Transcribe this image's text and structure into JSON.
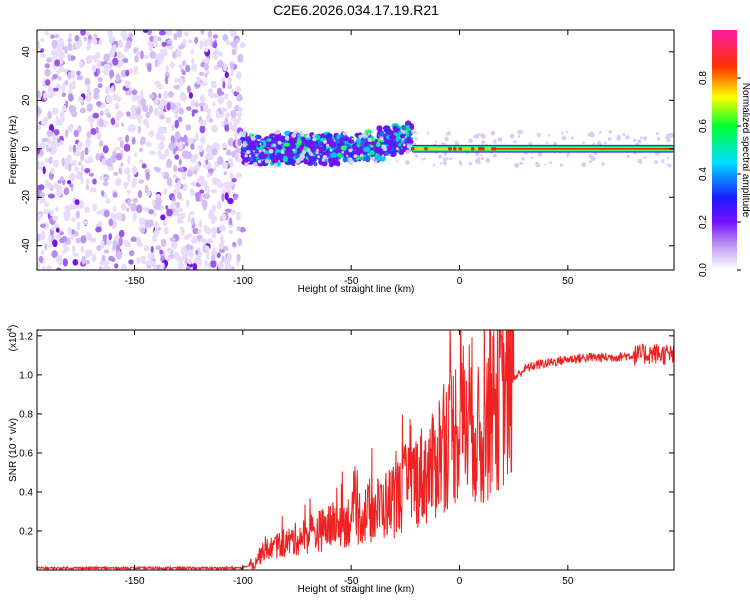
{
  "figure_title": "C2E6.2026.034.17.19.R21",
  "chart_data": [
    {
      "type": "heatmap",
      "title": "C2E6.2026.034.17.19.R21",
      "xlabel": "Height of straight line (km)",
      "ylabel": "Frequency (Hz)",
      "xlim": [
        -195,
        99
      ],
      "ylim": [
        -50,
        49
      ],
      "xticks": [
        -150,
        -100,
        -50,
        0,
        50
      ],
      "yticks": [
        -40,
        -20,
        0,
        20,
        40
      ],
      "colorbar": {
        "label": "Normalized spectral amplitude",
        "range": [
          0,
          1
        ],
        "ticks": [
          0.0,
          0.2,
          0.4,
          0.6,
          0.8
        ]
      },
      "regions": [
        {
          "x_range": [
            -195,
            -100
          ],
          "description": "broadband noise",
          "amplitude": 0.05
        },
        {
          "x_range": [
            -100,
            -22
          ],
          "description": "scattered signal near 0 Hz",
          "amplitude": 0.35
        },
        {
          "x_range": [
            -22,
            99
          ],
          "description": "narrow carrier line at 0 Hz",
          "amplitude": 0.95
        }
      ]
    },
    {
      "type": "line",
      "xlabel": "Height of straight line (km)",
      "ylabel": "SNR (10 * v/v)",
      "scale_label": "(x10",
      "scale_exponent": "4",
      "xlim": [
        -195,
        99
      ],
      "ylim": [
        0,
        1.23
      ],
      "xticks": [
        -150,
        -100,
        -50,
        0,
        50
      ],
      "yticks": [
        0.2,
        0.4,
        0.6,
        0.8,
        1.0,
        1.2
      ],
      "series": [
        {
          "name": "SNR",
          "color": "#ee2222",
          "x": [
            -195,
            -150,
            -100,
            -96,
            -90,
            -80,
            -70,
            -60,
            -50,
            -40,
            -30,
            -25,
            -20,
            -15,
            -12,
            -10,
            -5,
            0,
            5,
            8,
            10,
            12,
            15,
            20,
            25,
            30,
            35,
            40,
            50,
            60,
            70,
            80,
            90,
            99
          ],
          "y": [
            0.01,
            0.01,
            0.01,
            0.03,
            0.1,
            0.14,
            0.18,
            0.22,
            0.26,
            0.3,
            0.36,
            0.42,
            0.47,
            0.5,
            0.52,
            0.6,
            0.68,
            0.75,
            0.8,
            0.72,
            0.6,
            0.75,
            0.85,
            0.9,
            0.98,
            1.03,
            1.05,
            1.06,
            1.08,
            1.09,
            1.09,
            1.1,
            1.11,
            1.1
          ]
        }
      ]
    }
  ]
}
